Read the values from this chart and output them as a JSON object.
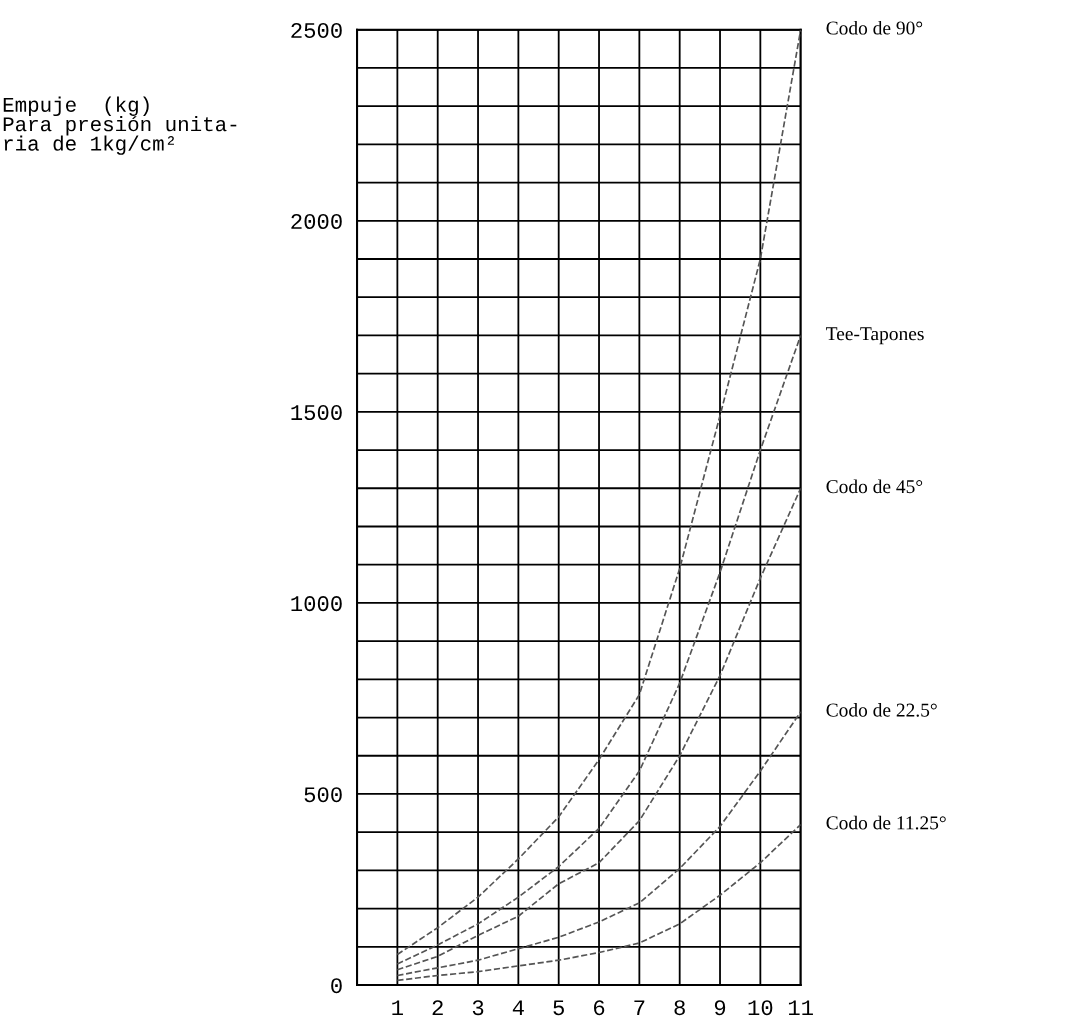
{
  "chart_data": {
    "type": "line",
    "ylabel": "Empuje  (kg)\nPara presión unita-\nria de 1kg/cm²",
    "x": [
      1,
      2,
      3,
      4,
      5,
      6,
      7,
      8,
      9,
      10,
      11
    ],
    "series": [
      {
        "name": "Codo de 90°",
        "color": "#555555",
        "values": [
          80,
          150,
          230,
          330,
          440,
          590,
          760,
          1090,
          1490,
          1900,
          2500
        ]
      },
      {
        "name": "Tee-Tapones",
        "color": "#555555",
        "values": [
          55,
          105,
          160,
          230,
          310,
          410,
          560,
          790,
          1080,
          1400,
          1700
        ]
      },
      {
        "name": "Codo de 45°",
        "color": "#555555",
        "values": [
          40,
          75,
          130,
          180,
          265,
          320,
          430,
          600,
          810,
          1065,
          1300
        ]
      },
      {
        "name": "Codo de 22.5°",
        "color": "#555555",
        "values": [
          25,
          45,
          65,
          95,
          125,
          165,
          215,
          305,
          415,
          560,
          715
        ]
      },
      {
        "name": "Codo de 11.25°",
        "color": "#555555",
        "values": [
          12,
          25,
          35,
          50,
          65,
          85,
          110,
          160,
          235,
          320,
          420
        ]
      }
    ],
    "xlim": [
      0,
      11
    ],
    "xticks": [
      1,
      2,
      3,
      4,
      5,
      6,
      7,
      8,
      9,
      10,
      11
    ],
    "ylim": [
      0,
      2500
    ],
    "yticks": [
      0,
      {
        "value": 100,
        "label": null
      },
      {
        "value": 200,
        "label": null
      },
      {
        "value": 300,
        "label": null
      },
      {
        "value": 400,
        "label": null
      },
      500,
      {
        "value": 600,
        "label": null
      },
      {
        "value": 700,
        "label": null
      },
      {
        "value": 800,
        "label": null
      },
      {
        "value": 900,
        "label": null
      },
      1000,
      {
        "value": 1100,
        "label": null
      },
      {
        "value": 1200,
        "label": null
      },
      {
        "value": 1300,
        "label": null
      },
      {
        "value": 1400,
        "label": null
      },
      1500,
      {
        "value": 1600,
        "label": null
      },
      {
        "value": 1700,
        "label": null
      },
      {
        "value": 1800,
        "label": null
      },
      {
        "value": 1900,
        "label": null
      },
      2000,
      {
        "value": 2100,
        "label": null
      },
      {
        "value": 2200,
        "label": null
      },
      {
        "value": 2300,
        "label": null
      },
      {
        "value": 2400,
        "label": null
      },
      2500
    ],
    "grid": true,
    "legend": false,
    "marker": "none",
    "line_style": "dashed"
  }
}
